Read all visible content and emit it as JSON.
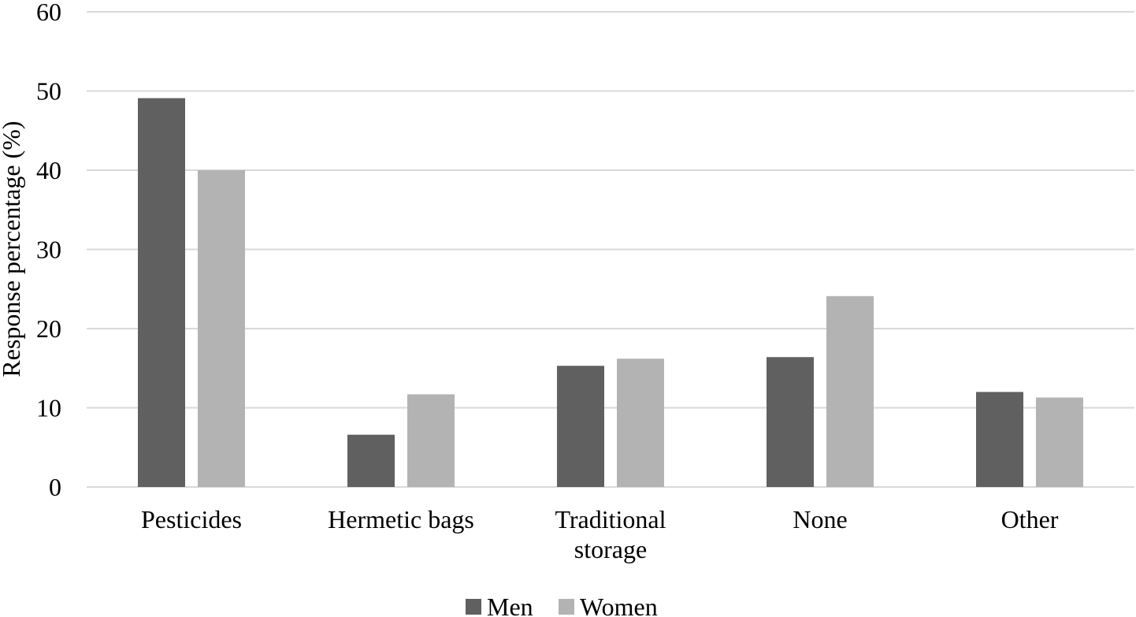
{
  "chart_data": {
    "type": "bar",
    "title": "",
    "xlabel": "",
    "ylabel": "Response percentage (%)",
    "ylim": [
      0,
      60
    ],
    "yticks": [
      0,
      10,
      20,
      30,
      40,
      50,
      60
    ],
    "grid": true,
    "legend_position": "bottom",
    "categories": [
      [
        "Pesticides"
      ],
      [
        "Hermetic bags"
      ],
      [
        "Traditional",
        "storage"
      ],
      [
        "None"
      ],
      [
        "Other"
      ]
    ],
    "series": [
      {
        "name": "Men",
        "color": "#606060",
        "values": [
          49.1,
          6.6,
          15.3,
          16.4,
          12.0
        ]
      },
      {
        "name": "Women",
        "color": "#b3b3b3",
        "values": [
          40.0,
          11.7,
          16.2,
          24.1,
          11.3
        ]
      }
    ],
    "gridline_color": "#d9d9d9"
  }
}
